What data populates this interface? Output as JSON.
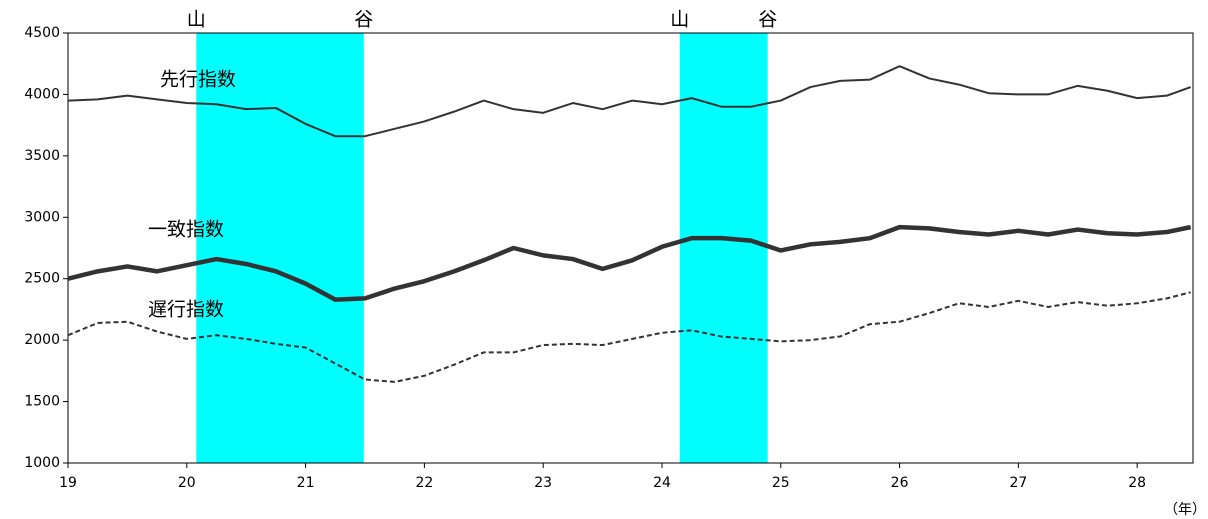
{
  "chart_data": {
    "type": "line",
    "x": [
      19,
      19.25,
      19.5,
      19.75,
      20,
      20.25,
      20.5,
      20.75,
      21,
      21.25,
      21.5,
      21.75,
      22,
      22.25,
      22.5,
      22.75,
      23,
      23.25,
      23.5,
      23.75,
      24,
      24.25,
      24.5,
      24.75,
      25,
      25.25,
      25.5,
      25.75,
      26,
      26.25,
      26.5,
      26.75,
      27,
      27.25,
      27.5,
      27.75,
      28,
      28.25,
      28.45
    ],
    "series": [
      {
        "name": "先行指数",
        "color": "#333333",
        "values": [
          3950,
          3960,
          3990,
          3960,
          3930,
          3920,
          3880,
          3890,
          3760,
          3660,
          3660,
          3720,
          3780,
          3860,
          3950,
          3880,
          3850,
          3930,
          3880,
          3950,
          3920,
          3970,
          3900,
          3900,
          3950,
          4060,
          4110,
          4120,
          4230,
          4130,
          4080,
          4010,
          4000,
          4000,
          4070,
          4030,
          3970,
          3990,
          4060
        ]
      },
      {
        "name": "一致指数",
        "color": "#333333",
        "values": [
          2500,
          2560,
          2600,
          2560,
          2610,
          2660,
          2620,
          2560,
          2460,
          2330,
          2340,
          2420,
          2480,
          2560,
          2650,
          2750,
          2690,
          2660,
          2580,
          2650,
          2760,
          2830,
          2830,
          2810,
          2730,
          2780,
          2800,
          2830,
          2920,
          2910,
          2880,
          2860,
          2890,
          2860,
          2900,
          2870,
          2860,
          2880,
          2920
        ]
      },
      {
        "name": "遅行指数",
        "color": "#333333",
        "values": [
          2040,
          2140,
          2150,
          2070,
          2010,
          2040,
          2010,
          1970,
          1940,
          1810,
          1680,
          1660,
          1710,
          1800,
          1900,
          1900,
          1960,
          1970,
          1960,
          2010,
          2060,
          2080,
          2030,
          2010,
          1990,
          2000,
          2030,
          2130,
          2150,
          2220,
          2300,
          2270,
          2320,
          2270,
          2310,
          2280,
          2300,
          2340,
          2390
        ]
      }
    ],
    "shading": [
      {
        "start": 20.08,
        "end": 21.49,
        "start_label": "山",
        "end_label": "谷"
      },
      {
        "start": 24.15,
        "end": 24.89,
        "start_label": "山",
        "end_label": "谷"
      }
    ],
    "shading_color": "#00ffff",
    "x_label": "（年）",
    "xlim": [
      19,
      28.47
    ],
    "xticks": [
      19,
      20,
      21,
      22,
      23,
      24,
      25,
      26,
      27,
      28
    ],
    "ylim": [
      1000,
      4500
    ],
    "yticks": [
      1000,
      1500,
      2000,
      2500,
      3000,
      3500,
      4000,
      4500
    ],
    "grid": false
  }
}
